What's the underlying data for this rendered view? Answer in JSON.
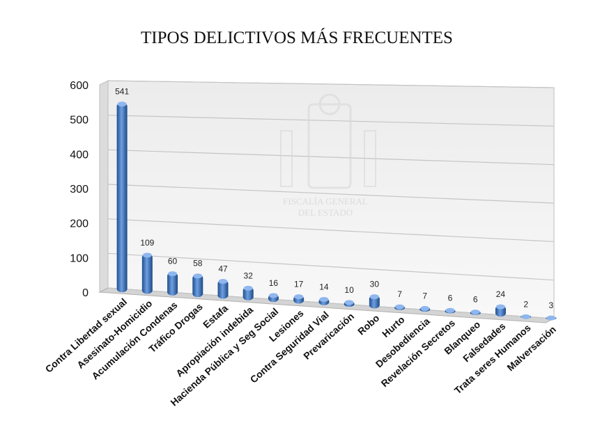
{
  "chart_data": {
    "type": "bar",
    "title": "TIPOS DELICTIVOS MÁS FRECUENTES",
    "ylim": [
      0,
      600
    ],
    "yticks": [
      "0",
      "100",
      "200",
      "300",
      "400",
      "500",
      "600"
    ],
    "grid": true,
    "categories": [
      "Contra Libertad sexual",
      "Asesinato-Homicidio",
      "Acumulación Condenas",
      "Tráfico Drogas",
      "Estafa",
      "Apropiación indebida",
      "Hacienda Pública y Seg Social",
      "Lesiones",
      "Contra Seguridad Vial",
      "Prevaricación",
      "Robo",
      "Hurto",
      "Desobediencia",
      "Revelación Secretos",
      "Blanqueo",
      "Falsedades",
      "Trata seres Humanos",
      "Malversación"
    ],
    "values": [
      541,
      109,
      60,
      58,
      47,
      32,
      16,
      17,
      14,
      10,
      30,
      7,
      7,
      6,
      6,
      24,
      2,
      3
    ],
    "watermark": [
      "FISCALÍA GENERAL",
      "DEL ESTADO"
    ],
    "bar_color": "#4a7fc8"
  }
}
